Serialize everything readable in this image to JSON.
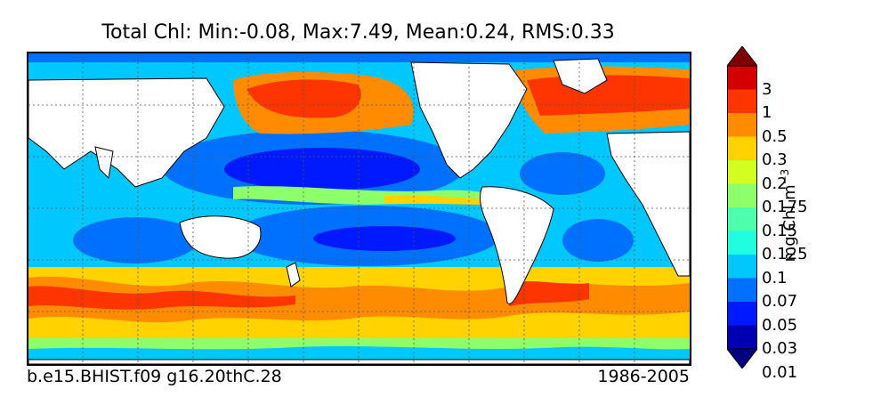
{
  "title": "Total Chl: Min:-0.08, Max:7.49, Mean:0.24, RMS:0.33",
  "footer": {
    "case_name": "b.e15.BHIST.f09 g16.20thC.28",
    "period": "1986-2005"
  },
  "colorbar": {
    "units_text": "mg Chl m",
    "units_exponent": "−3",
    "levels": [
      "3",
      "1",
      "0.5",
      "0.3",
      "0.2",
      "0.175",
      "0.15",
      "0.125",
      "0.1",
      "0.07",
      "0.05",
      "0.03",
      "0.01"
    ],
    "colors_top_to_bottom": [
      "#7f0000",
      "#d40000",
      "#ff3500",
      "#ff8c00",
      "#ffd200",
      "#d2ff1f",
      "#8cff6a",
      "#4dffad",
      "#1fffe0",
      "#00c8ff",
      "#0070ff",
      "#0019ff",
      "#0000b2",
      "#000080"
    ]
  },
  "map": {
    "land_color": "#ffffff",
    "coastline_color": "#000000",
    "grid_style": "dotted"
  }
}
